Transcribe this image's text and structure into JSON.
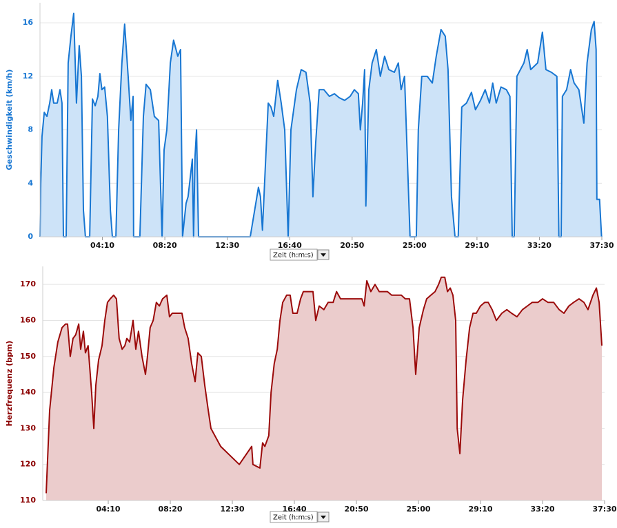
{
  "chart_data": [
    {
      "type": "area",
      "ylabel": "Geschwindigkeit (km/h)",
      "x_label": "Zeit (h:m:s)",
      "color": "#1776d2",
      "fill": "#cde3f8",
      "grid": true,
      "xlim": [
        0,
        2250
      ],
      "ylim": [
        0,
        17.5
      ],
      "yticks": [
        0,
        4,
        8,
        12,
        16
      ],
      "xticks": [
        {
          "value": 250,
          "label": "04:10"
        },
        {
          "value": 500,
          "label": "08:20"
        },
        {
          "value": 750,
          "label": "12:30"
        },
        {
          "value": 1000,
          "label": "16:40"
        },
        {
          "value": 1250,
          "label": "20:50"
        },
        {
          "value": 1500,
          "label": "25:00"
        },
        {
          "value": 1750,
          "label": "29:10"
        },
        {
          "value": 2000,
          "label": "33:20"
        },
        {
          "value": 2250,
          "label": "37:30"
        }
      ],
      "x": [
        0,
        3,
        8,
        17,
        28,
        39,
        47,
        55,
        69,
        80,
        88,
        94,
        105,
        113,
        124,
        135,
        146,
        157,
        166,
        174,
        182,
        199,
        210,
        221,
        232,
        240,
        248,
        259,
        270,
        282,
        290,
        304,
        315,
        328,
        339,
        353,
        364,
        373,
        375,
        400,
        414,
        425,
        442,
        458,
        475,
        489,
        497,
        508,
        522,
        535,
        552,
        563,
        571,
        585,
        593,
        610,
        615,
        621,
        627,
        635,
        842,
        875,
        883,
        891,
        914,
        925,
        936,
        952,
        966,
        980,
        994,
        1005,
        1027,
        1046,
        1065,
        1082,
        1093,
        1104,
        1118,
        1137,
        1159,
        1179,
        1198,
        1220,
        1242,
        1259,
        1275,
        1283,
        1292,
        1300,
        1305,
        1317,
        1330,
        1347,
        1363,
        1380,
        1397,
        1419,
        1435,
        1446,
        1460,
        1482,
        1507,
        1515,
        1529,
        1551,
        1571,
        1587,
        1606,
        1623,
        1634,
        1648,
        1662,
        1675,
        1689,
        1708,
        1728,
        1744,
        1764,
        1783,
        1800,
        1813,
        1827,
        1846,
        1868,
        1882,
        1891,
        1899,
        1910,
        1938,
        1951,
        1965,
        1993,
        2012,
        2026,
        2048,
        2070,
        2078,
        2087,
        2092,
        2109,
        2125,
        2139,
        2158,
        2178,
        2191,
        2208,
        2219,
        2227,
        2230,
        2241,
        2249
      ],
      "values": [
        0,
        4,
        7.5,
        9.3,
        9,
        10,
        11,
        10,
        10,
        11,
        10,
        0,
        0,
        13,
        15,
        16.7,
        10,
        14.3,
        12,
        2,
        0,
        0,
        10.3,
        9.8,
        10.5,
        12.2,
        11,
        11.2,
        9,
        2,
        0,
        0,
        8,
        13,
        15.9,
        12,
        8.7,
        10.5,
        0,
        0,
        9,
        11.4,
        11,
        9,
        8.7,
        0,
        6.5,
        8,
        13,
        14.7,
        13.5,
        14,
        0,
        2.5,
        3,
        5.8,
        0,
        6,
        8,
        0,
        0,
        3.7,
        3,
        0.5,
        10,
        9.7,
        9,
        11.7,
        10,
        8,
        0,
        8,
        11,
        12.5,
        12.3,
        10,
        3,
        7,
        11,
        11,
        10.5,
        10.7,
        10.4,
        10.2,
        10.5,
        11,
        10.7,
        8,
        10,
        12.5,
        2.3,
        11,
        13,
        14,
        12,
        13.5,
        12.5,
        12.3,
        13,
        11,
        12,
        0,
        0,
        8,
        12,
        12,
        11.5,
        13.5,
        15.5,
        15,
        12.5,
        3,
        0,
        0,
        9.7,
        10,
        10.8,
        9.5,
        10.2,
        11,
        10,
        11.5,
        10,
        11.2,
        11,
        10.5,
        0,
        0,
        12,
        13,
        14,
        12.5,
        13,
        15.3,
        12.5,
        12.3,
        12,
        0,
        0,
        10.5,
        11,
        12.5,
        11.5,
        11,
        8.5,
        13,
        15.5,
        16.1,
        14,
        2.8,
        2.8,
        0
      ]
    },
    {
      "type": "area",
      "ylabel": "Herzfrequenz (bpm)",
      "x_label": "Zeit (h:m:s)",
      "color": "#9b0a0a",
      "fill": "#ebcccc",
      "grid": true,
      "xlim": [
        0,
        2250
      ],
      "ylim": [
        110,
        175
      ],
      "yticks": [
        110,
        120,
        130,
        140,
        150,
        160,
        170
      ],
      "xticks": [
        {
          "value": 250,
          "label": "04:10"
        },
        {
          "value": 500,
          "label": "08:20"
        },
        {
          "value": 750,
          "label": "12:30"
        },
        {
          "value": 1000,
          "label": "16:40"
        },
        {
          "value": 1250,
          "label": "20:50"
        },
        {
          "value": 1500,
          "label": "25:00"
        },
        {
          "value": 1750,
          "label": "29:10"
        },
        {
          "value": 2000,
          "label": "33:20"
        },
        {
          "value": 2250,
          "label": "37:30"
        }
      ],
      "x": [
        0,
        14,
        31,
        47,
        64,
        78,
        86,
        97,
        108,
        119,
        131,
        139,
        150,
        158,
        169,
        183,
        192,
        200,
        211,
        225,
        236,
        247,
        258,
        272,
        283,
        294,
        306,
        317,
        325,
        336,
        350,
        361,
        372,
        386,
        400,
        408,
        419,
        431,
        444,
        456,
        469,
        486,
        497,
        508,
        522,
        533,
        547,
        558,
        572,
        586,
        600,
        611,
        625,
        639,
        653,
        664,
        703,
        778,
        828,
        833,
        861,
        872,
        881,
        897,
        906,
        919,
        931,
        942,
        953,
        969,
        983,
        994,
        1011,
        1025,
        1036,
        1056,
        1075,
        1086,
        1100,
        1119,
        1136,
        1156,
        1170,
        1186,
        1206,
        1225,
        1245,
        1261,
        1272,
        1281,
        1292,
        1308,
        1325,
        1342,
        1358,
        1375,
        1392,
        1411,
        1431,
        1447,
        1464,
        1478,
        1489,
        1503,
        1520,
        1533,
        1550,
        1567,
        1581,
        1592,
        1606,
        1617,
        1628,
        1639,
        1650,
        1656,
        1667,
        1678,
        1692,
        1706,
        1720,
        1733,
        1750,
        1767,
        1781,
        1797,
        1814,
        1836,
        1856,
        1875,
        1897,
        1919,
        1939,
        1958,
        1981,
        2000,
        2022,
        2045,
        2067,
        2086,
        2106,
        2125,
        2147,
        2167,
        2183,
        2203,
        2217,
        2228,
        2239
      ],
      "values": [
        112,
        135,
        147,
        154,
        158,
        159,
        159,
        150,
        155,
        156,
        159,
        152,
        157,
        151,
        153,
        140,
        130,
        142,
        149,
        153,
        160,
        165,
        166,
        167,
        166,
        155,
        152,
        153,
        155,
        154,
        160,
        152,
        157,
        150,
        145,
        150,
        158,
        160,
        165,
        164,
        166,
        167,
        161,
        162,
        162,
        162,
        162,
        158,
        155,
        148,
        143,
        151,
        150,
        142,
        135,
        130,
        125,
        120,
        125,
        120,
        119,
        126,
        125,
        128,
        140,
        148,
        152,
        160,
        165,
        167,
        167,
        162,
        162,
        166,
        168,
        168,
        168,
        160,
        164,
        163,
        165,
        165,
        168,
        166,
        166,
        166,
        166,
        166,
        166,
        164,
        171,
        168,
        170,
        168,
        168,
        168,
        167,
        167,
        167,
        166,
        166,
        158,
        145,
        158,
        163,
        166,
        167,
        168,
        170,
        172,
        172,
        168,
        169,
        167,
        160,
        130,
        123,
        138,
        149,
        158,
        162,
        162,
        164,
        165,
        165,
        163,
        160,
        162,
        163,
        162,
        161,
        163,
        164,
        165,
        165,
        166,
        165,
        165,
        163,
        162,
        164,
        165,
        166,
        165,
        163,
        167,
        169,
        165,
        153
      ]
    }
  ]
}
